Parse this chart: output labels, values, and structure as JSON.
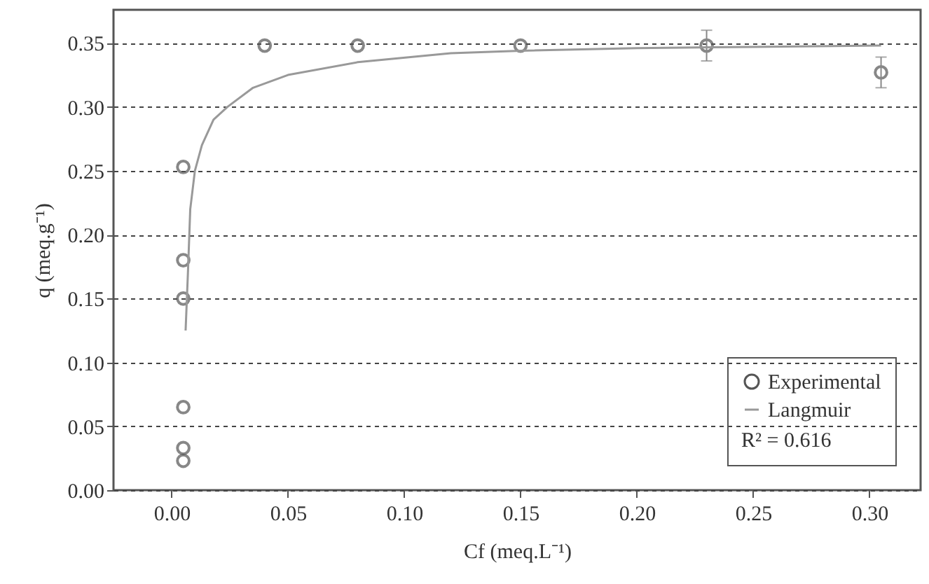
{
  "chart_data": {
    "type": "scatter",
    "xlabel": "Cf (meq.L⁻¹)",
    "ylabel": "q (meq.g⁻¹)",
    "xlim": [
      -0.025,
      0.322
    ],
    "xticks": [
      {
        "value": 0,
        "label": "0.00"
      },
      0.05,
      {
        "value": 0.1,
        "label": "0.10"
      },
      0.15,
      {
        "value": 0.2,
        "label": "0.20"
      },
      0.25,
      {
        "value": 0.3,
        "label": "0.30"
      }
    ],
    "ylim": [
      0,
      0.376
    ],
    "yticks": [
      {
        "value": 0,
        "label": "0.00"
      },
      0.05,
      {
        "value": 0.1,
        "label": "0.10"
      },
      0.15,
      {
        "value": 0.2,
        "label": "0.20"
      },
      0.25,
      {
        "value": 0.3,
        "label": "0.30"
      },
      0.35
    ],
    "grid": "y",
    "legend": "bottom right",
    "annotations": [
      "R² = 0.616"
    ],
    "series": [
      {
        "name": "Experimental",
        "marker": "circle",
        "color": "#555555",
        "x": [
          0.005,
          0.005,
          0.005,
          0.005,
          0.005,
          0.005,
          0.04,
          0.08,
          0.15,
          0.23,
          0.305
        ],
        "values": [
          0.253,
          0.18,
          0.15,
          0.065,
          0.033,
          0.023,
          0.348,
          0.348,
          0.348,
          0.348,
          0.327
        ],
        "errors": [
          null,
          null,
          null,
          null,
          null,
          null,
          null,
          null,
          null,
          0.012,
          0.012
        ]
      },
      {
        "name": "Langmuir",
        "type": "line",
        "color": "#999999",
        "line_style": "solid",
        "x": [
          0.006,
          0.007,
          0.008,
          0.01,
          0.013,
          0.018,
          0.024,
          0.035,
          0.05,
          0.08,
          0.12,
          0.15,
          0.2,
          0.25,
          0.305
        ],
        "values": [
          0.125,
          0.17,
          0.22,
          0.25,
          0.27,
          0.29,
          0.3,
          0.315,
          0.325,
          0.335,
          0.342,
          0.344,
          0.346,
          0.347,
          0.348
        ]
      }
    ]
  }
}
